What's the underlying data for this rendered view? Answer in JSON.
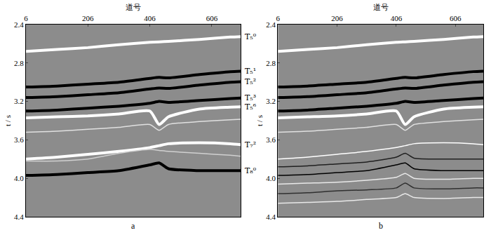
{
  "chart_data": [
    {
      "type": "line",
      "label": "a",
      "xlabel": "道号",
      "ylabel": "t / s",
      "xlim": [
        6,
        700
      ],
      "ylim": [
        4.4,
        2.4
      ],
      "xticks": [
        6,
        206,
        406,
        606
      ],
      "yticks": [
        2.4,
        2.8,
        3.2,
        3.6,
        {
          "value": 4,
          "label": "4.0"
        },
        4.4
      ],
      "x": [
        6,
        106,
        206,
        306,
        406,
        436,
        466,
        566,
        666,
        700
      ],
      "series": [
        {
          "name": "T₅⁰",
          "color": "#ffffff",
          "line_style": "thick",
          "values": [
            2.68,
            2.66,
            2.64,
            2.61,
            2.585,
            2.58,
            2.575,
            2.555,
            2.53,
            2.525
          ]
        },
        {
          "name": "T₅¹",
          "color": "#000000",
          "line_style": "thick",
          "values": [
            3.05,
            3.04,
            3.02,
            3.0,
            2.96,
            2.95,
            2.955,
            2.92,
            2.89,
            2.885
          ]
        },
        {
          "name": "T₅²",
          "color": "#000000",
          "line_style": "thick",
          "values": [
            3.16,
            3.15,
            3.13,
            3.11,
            3.07,
            3.06,
            3.065,
            3.03,
            3.0,
            2.995
          ]
        },
        {
          "name": "T₅³",
          "color": "#000000",
          "line_style": "thick",
          "values": [
            3.3,
            3.29,
            3.27,
            3.25,
            3.22,
            3.2,
            3.21,
            3.19,
            3.17,
            3.165
          ]
        },
        {
          "name": "T₅⁶",
          "color": "#ffffff",
          "line_style": "thick",
          "values": [
            3.37,
            3.36,
            3.35,
            3.33,
            3.3,
            3.44,
            3.36,
            3.28,
            3.26,
            3.255
          ]
        },
        {
          "color": "#e0e0e0",
          "line_style": "thin",
          "values": [
            3.52,
            3.51,
            3.49,
            3.47,
            3.44,
            3.5,
            3.44,
            3.41,
            3.39,
            3.385
          ]
        },
        {
          "name": "T₇²",
          "color": "#ffffff",
          "line_style": "thick",
          "values": [
            3.8,
            3.78,
            3.75,
            3.72,
            3.68,
            3.66,
            3.64,
            3.63,
            3.64,
            3.65
          ]
        },
        {
          "color": "#d0d0d0",
          "line_style": "thin",
          "values": [
            3.82,
            3.82,
            3.8,
            3.74,
            3.7,
            3.71,
            3.72,
            3.74,
            3.76,
            3.77
          ]
        },
        {
          "name": "T₈⁰",
          "color": "#000000",
          "line_style": "thick",
          "values": [
            3.97,
            3.96,
            3.94,
            3.92,
            3.86,
            3.84,
            3.9,
            3.92,
            3.92,
            3.92
          ]
        }
      ]
    },
    {
      "type": "line",
      "label": "b",
      "xlabel": "道号",
      "ylabel": "t / s",
      "xlim": [
        6,
        700
      ],
      "ylim": [
        4.4,
        2.4
      ],
      "xticks": [
        6,
        206,
        406,
        606
      ],
      "yticks": [
        2.4,
        2.8,
        3.2,
        3.6,
        {
          "value": 4,
          "label": "4.0"
        },
        4.4
      ],
      "x": [
        6,
        106,
        206,
        306,
        406,
        436,
        466,
        566,
        666,
        700
      ],
      "series": [
        {
          "color": "#ffffff",
          "line_style": "thick",
          "values": [
            2.68,
            2.66,
            2.64,
            2.61,
            2.585,
            2.58,
            2.575,
            2.555,
            2.53,
            2.525
          ]
        },
        {
          "color": "#000000",
          "line_style": "thick",
          "values": [
            3.05,
            3.04,
            3.02,
            3.0,
            2.96,
            2.95,
            2.955,
            2.92,
            2.89,
            2.885
          ]
        },
        {
          "color": "#000000",
          "line_style": "thick",
          "values": [
            3.16,
            3.15,
            3.13,
            3.11,
            3.07,
            3.06,
            3.065,
            3.03,
            3.0,
            2.995
          ]
        },
        {
          "color": "#000000",
          "line_style": "thick",
          "values": [
            3.3,
            3.29,
            3.27,
            3.25,
            3.22,
            3.2,
            3.21,
            3.19,
            3.17,
            3.165
          ]
        },
        {
          "color": "#ffffff",
          "line_style": "thick",
          "values": [
            3.37,
            3.36,
            3.35,
            3.33,
            3.3,
            3.44,
            3.36,
            3.28,
            3.26,
            3.255
          ]
        },
        {
          "color": "#e0e0e0",
          "line_style": "thin",
          "values": [
            3.52,
            3.51,
            3.49,
            3.47,
            3.44,
            3.5,
            3.44,
            3.41,
            3.39,
            3.385
          ]
        },
        {
          "color": "#ffffff",
          "line_style": "thin",
          "values": [
            3.8,
            3.78,
            3.75,
            3.72,
            3.68,
            3.66,
            3.64,
            3.63,
            3.64,
            3.65
          ]
        },
        {
          "color": "#202020",
          "line_style": "thin",
          "values": [
            3.88,
            3.87,
            3.85,
            3.83,
            3.78,
            3.74,
            3.79,
            3.8,
            3.8,
            3.8
          ]
        },
        {
          "color": "#000000",
          "line_style": "thin",
          "values": [
            3.97,
            3.96,
            3.94,
            3.92,
            3.86,
            3.84,
            3.9,
            3.92,
            3.92,
            3.92
          ]
        },
        {
          "color": "#e8e8e8",
          "line_style": "thin",
          "values": [
            4.06,
            4.05,
            4.04,
            4.02,
            3.99,
            3.95,
            4.0,
            4.01,
            4.0,
            4.0
          ]
        },
        {
          "color": "#303030",
          "line_style": "thin",
          "values": [
            4.16,
            4.15,
            4.13,
            4.12,
            4.1,
            4.05,
            4.1,
            4.11,
            4.1,
            4.1
          ]
        },
        {
          "color": "#e8e8e8",
          "line_style": "thin",
          "values": [
            4.26,
            4.25,
            4.24,
            4.22,
            4.2,
            4.16,
            4.2,
            4.21,
            4.2,
            4.2
          ]
        }
      ]
    }
  ]
}
